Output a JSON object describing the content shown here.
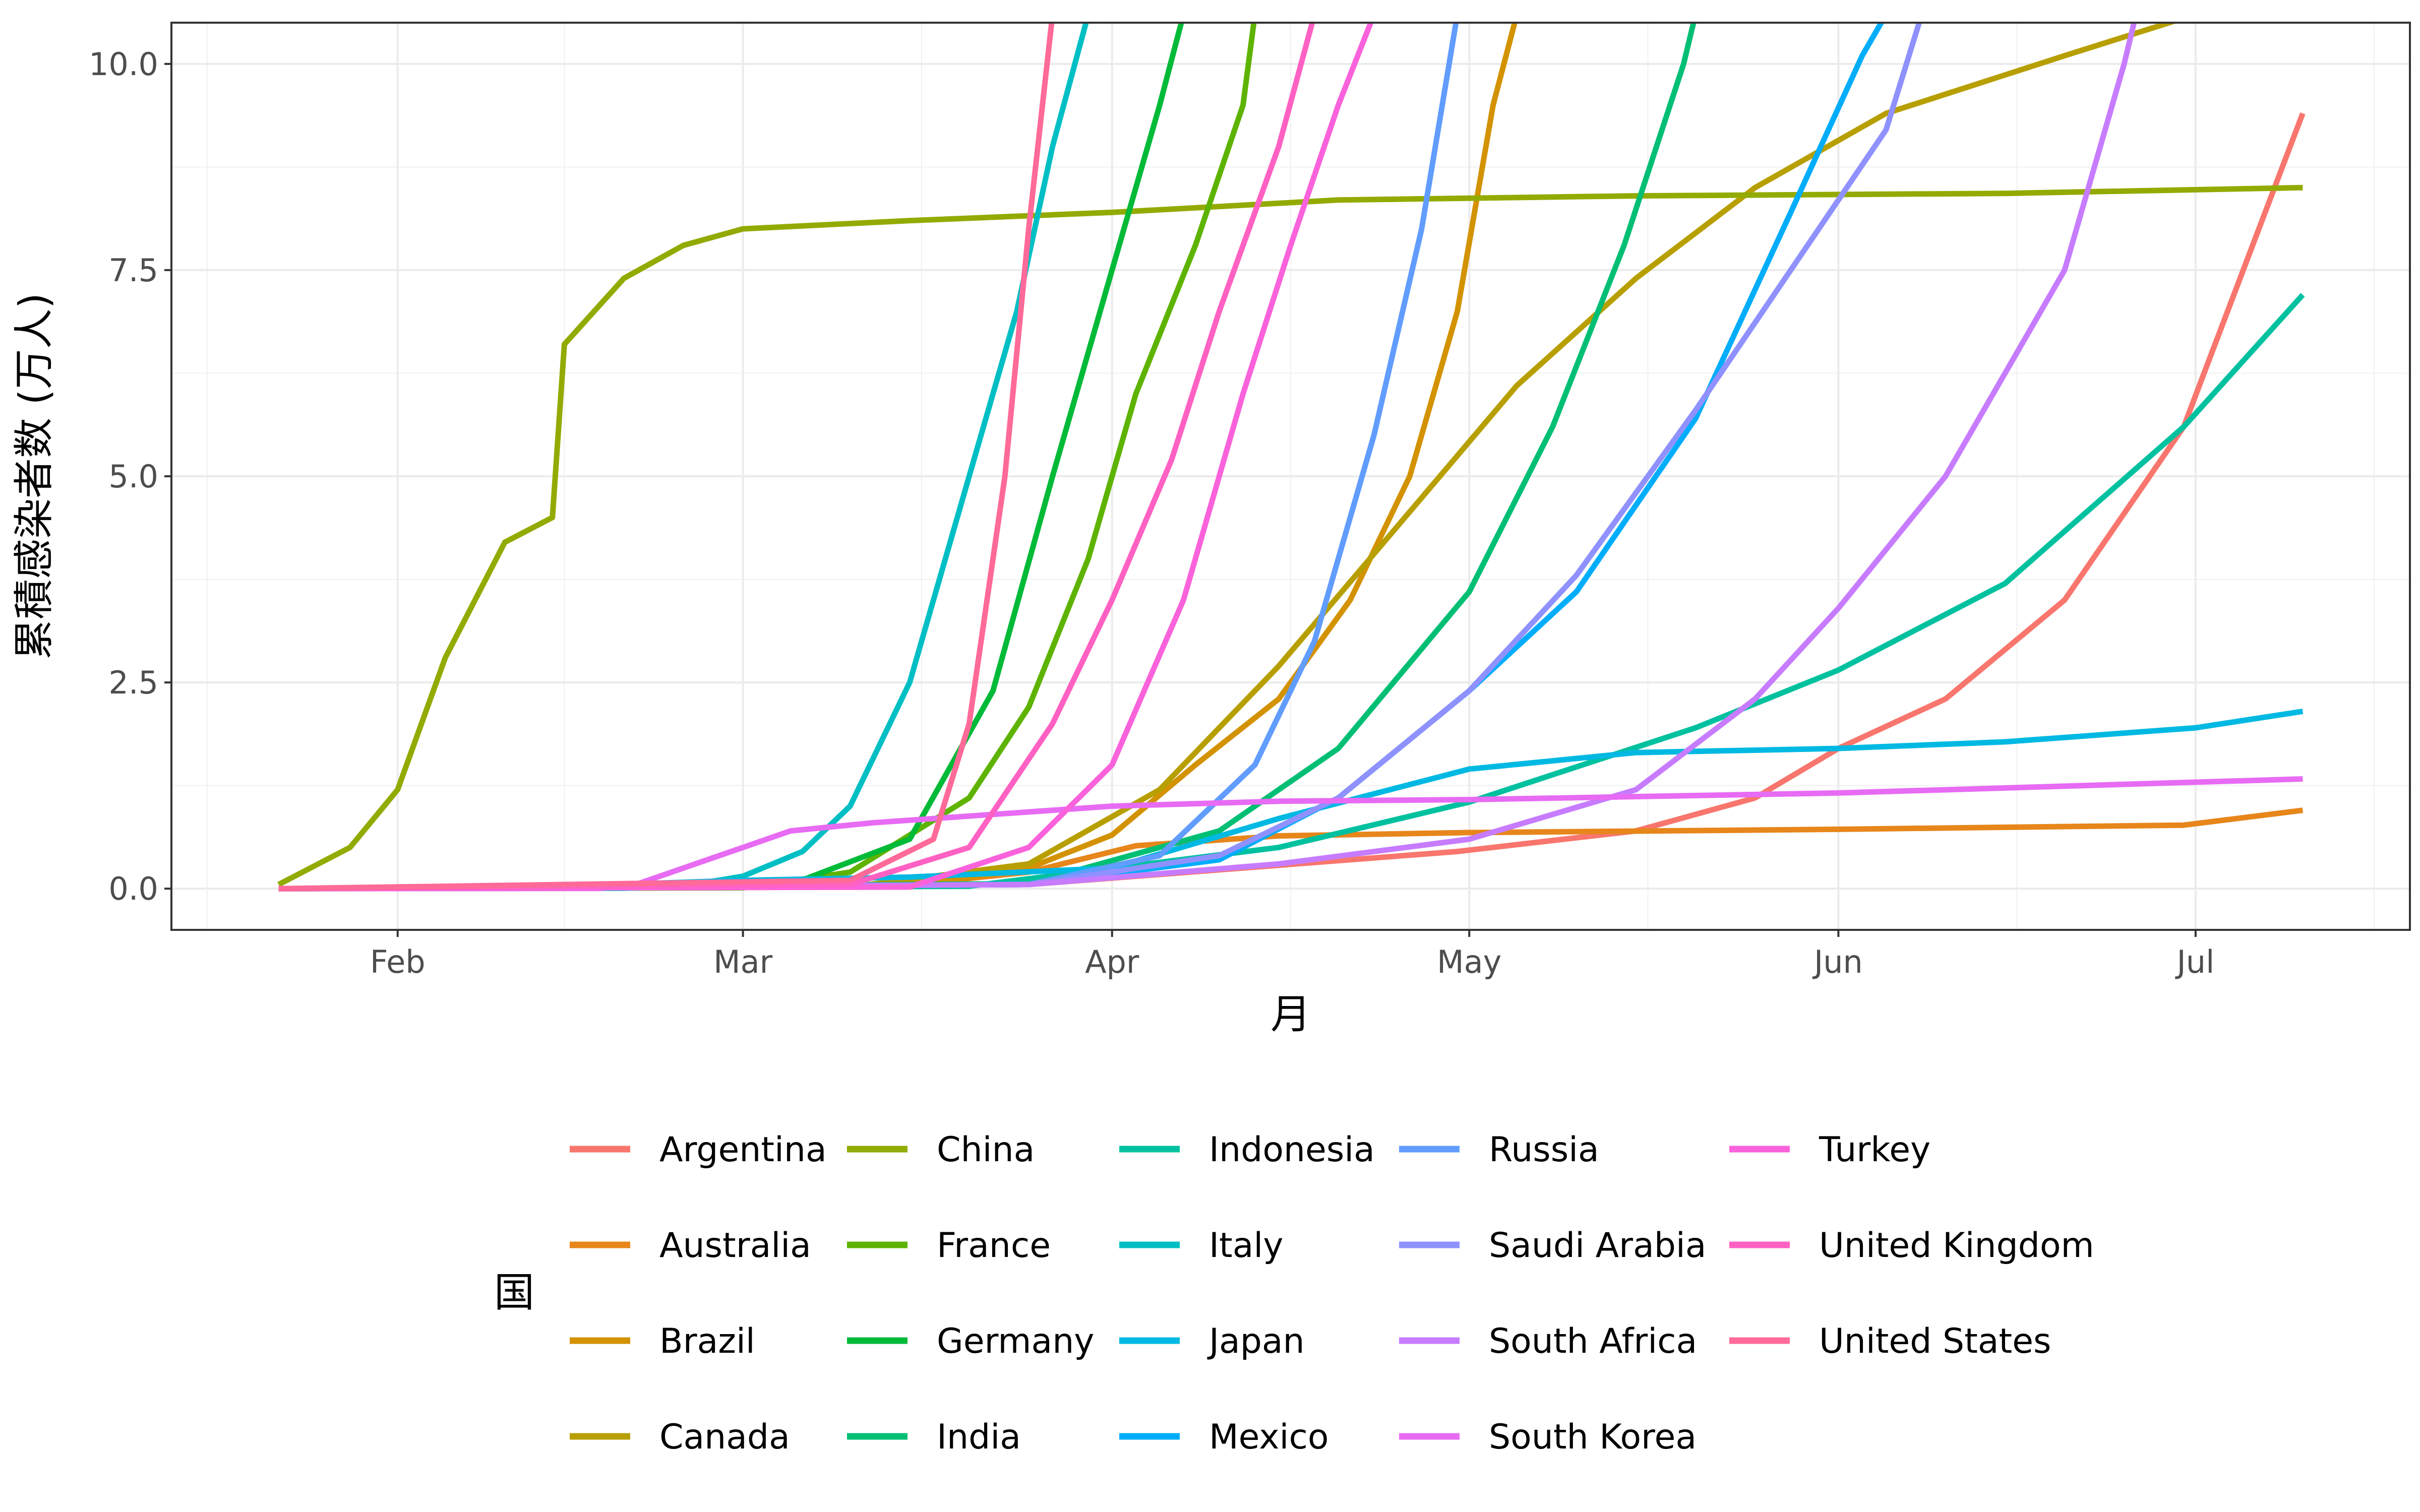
{
  "chart_data": {
    "type": "line",
    "xlabel": "月",
    "ylabel": "累積感染者数 (万人)",
    "legend_title": "国",
    "legend_position": "bottom",
    "grid": true,
    "x_axis": "date",
    "xlim": [
      "2020-01-13",
      "2020-07-19"
    ],
    "ylim": [
      -0.5,
      10.5
    ],
    "x_ticks": [
      {
        "date": "2020-02-01",
        "label": "Feb"
      },
      {
        "date": "2020-03-01",
        "label": "Mar"
      },
      {
        "date": "2020-04-01",
        "label": "Apr"
      },
      {
        "date": "2020-05-01",
        "label": "May"
      },
      {
        "date": "2020-06-01",
        "label": "Jun"
      },
      {
        "date": "2020-07-01",
        "label": "Jul"
      }
    ],
    "x_minor_ticks": [
      "2020-01-16",
      "2020-02-15",
      "2020-03-16",
      "2020-04-16",
      "2020-05-16",
      "2020-06-16",
      "2020-07-16"
    ],
    "y_ticks": [
      0.0,
      2.5,
      5.0,
      7.5,
      10.0
    ],
    "y_tick_labels": [
      "0.0",
      "2.5",
      "5.0",
      "7.5",
      "10.0"
    ],
    "series": [
      {
        "name": "Argentina",
        "color": "#F8766D",
        "points": [
          [
            "2020-01-22",
            0
          ],
          [
            "2020-03-25",
            0.05
          ],
          [
            "2020-04-30",
            0.45
          ],
          [
            "2020-05-15",
            0.7
          ],
          [
            "2020-05-25",
            1.1
          ],
          [
            "2020-06-01",
            1.7
          ],
          [
            "2020-06-10",
            2.3
          ],
          [
            "2020-06-20",
            3.5
          ],
          [
            "2020-06-30",
            5.6
          ],
          [
            "2020-07-10",
            9.4
          ]
        ]
      },
      {
        "name": "Australia",
        "color": "#E7861B",
        "points": [
          [
            "2020-01-22",
            0
          ],
          [
            "2020-03-15",
            0.05
          ],
          [
            "2020-03-25",
            0.2
          ],
          [
            "2020-04-03",
            0.52
          ],
          [
            "2020-04-15",
            0.64
          ],
          [
            "2020-05-01",
            0.68
          ],
          [
            "2020-06-01",
            0.72
          ],
          [
            "2020-06-30",
            0.77
          ],
          [
            "2020-07-10",
            0.95
          ]
        ]
      },
      {
        "name": "Brazil",
        "color": "#D39200",
        "points": [
          [
            "2020-01-22",
            0
          ],
          [
            "2020-03-15",
            0.02
          ],
          [
            "2020-03-25",
            0.25
          ],
          [
            "2020-04-01",
            0.65
          ],
          [
            "2020-04-08",
            1.5
          ],
          [
            "2020-04-15",
            2.3
          ],
          [
            "2020-04-21",
            3.5
          ],
          [
            "2020-04-26",
            5.0
          ],
          [
            "2020-04-30",
            7.0
          ],
          [
            "2020-05-03",
            9.5
          ],
          [
            "2020-05-05",
            10.6
          ]
        ]
      },
      {
        "name": "Canada",
        "color": "#B79F00",
        "points": [
          [
            "2020-01-22",
            0
          ],
          [
            "2020-03-10",
            0.02
          ],
          [
            "2020-03-25",
            0.3
          ],
          [
            "2020-04-05",
            1.2
          ],
          [
            "2020-04-15",
            2.7
          ],
          [
            "2020-04-25",
            4.4
          ],
          [
            "2020-05-05",
            6.1
          ],
          [
            "2020-05-15",
            7.4
          ],
          [
            "2020-05-25",
            8.5
          ],
          [
            "2020-06-05",
            9.4
          ],
          [
            "2020-06-20",
            10.1
          ],
          [
            "2020-07-01",
            10.6
          ]
        ]
      },
      {
        "name": "China",
        "color": "#93AA00",
        "points": [
          [
            "2020-01-22",
            0.05
          ],
          [
            "2020-01-28",
            0.5
          ],
          [
            "2020-02-01",
            1.2
          ],
          [
            "2020-02-05",
            2.8
          ],
          [
            "2020-02-10",
            4.2
          ],
          [
            "2020-02-14",
            4.5
          ],
          [
            "2020-02-15",
            6.6
          ],
          [
            "2020-02-20",
            7.4
          ],
          [
            "2020-02-25",
            7.8
          ],
          [
            "2020-03-01",
            8.0
          ],
          [
            "2020-03-15",
            8.1
          ],
          [
            "2020-04-01",
            8.2
          ],
          [
            "2020-04-20",
            8.35
          ],
          [
            "2020-05-15",
            8.4
          ],
          [
            "2020-06-15",
            8.43
          ],
          [
            "2020-07-10",
            8.5
          ]
        ]
      },
      {
        "name": "France",
        "color": "#5EB300",
        "points": [
          [
            "2020-01-22",
            0
          ],
          [
            "2020-03-01",
            0.01
          ],
          [
            "2020-03-10",
            0.2
          ],
          [
            "2020-03-20",
            1.1
          ],
          [
            "2020-03-25",
            2.2
          ],
          [
            "2020-03-30",
            4.0
          ],
          [
            "2020-04-03",
            6.0
          ],
          [
            "2020-04-08",
            7.8
          ],
          [
            "2020-04-12",
            9.5
          ],
          [
            "2020-04-13",
            10.6
          ]
        ]
      },
      {
        "name": "Germany",
        "color": "#00BA38",
        "points": [
          [
            "2020-01-22",
            0
          ],
          [
            "2020-03-05",
            0.05
          ],
          [
            "2020-03-15",
            0.6
          ],
          [
            "2020-03-22",
            2.4
          ],
          [
            "2020-03-27",
            5.0
          ],
          [
            "2020-04-01",
            7.5
          ],
          [
            "2020-04-05",
            9.5
          ],
          [
            "2020-04-07",
            10.6
          ]
        ]
      },
      {
        "name": "India",
        "color": "#00BF74",
        "points": [
          [
            "2020-01-22",
            0
          ],
          [
            "2020-03-25",
            0.06
          ],
          [
            "2020-04-10",
            0.7
          ],
          [
            "2020-04-20",
            1.7
          ],
          [
            "2020-05-01",
            3.6
          ],
          [
            "2020-05-08",
            5.6
          ],
          [
            "2020-05-14",
            7.8
          ],
          [
            "2020-05-19",
            10.0
          ],
          [
            "2020-05-20",
            10.6
          ]
        ]
      },
      {
        "name": "Indonesia",
        "color": "#00C19F",
        "points": [
          [
            "2020-01-22",
            0
          ],
          [
            "2020-03-20",
            0.03
          ],
          [
            "2020-04-15",
            0.5
          ],
          [
            "2020-05-01",
            1.05
          ],
          [
            "2020-05-20",
            1.95
          ],
          [
            "2020-06-01",
            2.65
          ],
          [
            "2020-06-15",
            3.7
          ],
          [
            "2020-06-30",
            5.6
          ],
          [
            "2020-07-10",
            7.2
          ]
        ]
      },
      {
        "name": "Italy",
        "color": "#00BFC4",
        "points": [
          [
            "2020-01-22",
            0
          ],
          [
            "2020-02-20",
            0.005
          ],
          [
            "2020-02-25",
            0.03
          ],
          [
            "2020-03-01",
            0.15
          ],
          [
            "2020-03-06",
            0.45
          ],
          [
            "2020-03-10",
            1.0
          ],
          [
            "2020-03-15",
            2.5
          ],
          [
            "2020-03-20",
            5.0
          ],
          [
            "2020-03-24",
            7.0
          ],
          [
            "2020-03-27",
            9.0
          ],
          [
            "2020-03-30",
            10.6
          ]
        ]
      },
      {
        "name": "Japan",
        "color": "#00B9E3",
        "points": [
          [
            "2020-01-22",
            0
          ],
          [
            "2020-02-01",
            0.003
          ],
          [
            "2020-02-15",
            0.03
          ],
          [
            "2020-03-01",
            0.1
          ],
          [
            "2020-03-15",
            0.14
          ],
          [
            "2020-04-01",
            0.25
          ],
          [
            "2020-04-15",
            0.85
          ],
          [
            "2020-05-01",
            1.45
          ],
          [
            "2020-05-15",
            1.65
          ],
          [
            "2020-06-01",
            1.7
          ],
          [
            "2020-06-15",
            1.78
          ],
          [
            "2020-07-01",
            1.95
          ],
          [
            "2020-07-10",
            2.15
          ]
        ]
      },
      {
        "name": "Mexico",
        "color": "#00ADFA",
        "points": [
          [
            "2020-01-22",
            0
          ],
          [
            "2020-03-25",
            0.05
          ],
          [
            "2020-04-10",
            0.35
          ],
          [
            "2020-04-20",
            1.1
          ],
          [
            "2020-05-01",
            2.4
          ],
          [
            "2020-05-10",
            3.6
          ],
          [
            "2020-05-20",
            5.7
          ],
          [
            "2020-05-28",
            8.2
          ],
          [
            "2020-06-03",
            10.1
          ],
          [
            "2020-06-05",
            10.6
          ]
        ]
      },
      {
        "name": "Russia",
        "color": "#619CFF",
        "points": [
          [
            "2020-01-22",
            0
          ],
          [
            "2020-03-25",
            0.05
          ],
          [
            "2020-04-05",
            0.4
          ],
          [
            "2020-04-13",
            1.5
          ],
          [
            "2020-04-18",
            3.0
          ],
          [
            "2020-04-23",
            5.5
          ],
          [
            "2020-04-27",
            8.0
          ],
          [
            "2020-04-30",
            10.6
          ]
        ]
      },
      {
        "name": "Saudi Arabia",
        "color": "#8F91FF",
        "points": [
          [
            "2020-01-22",
            0
          ],
          [
            "2020-03-25",
            0.05
          ],
          [
            "2020-04-10",
            0.4
          ],
          [
            "2020-04-20",
            1.1
          ],
          [
            "2020-05-01",
            2.4
          ],
          [
            "2020-05-10",
            3.8
          ],
          [
            "2020-05-20",
            5.8
          ],
          [
            "2020-05-28",
            7.5
          ],
          [
            "2020-06-05",
            9.2
          ],
          [
            "2020-06-08",
            10.6
          ]
        ]
      },
      {
        "name": "South Africa",
        "color": "#C77CFF",
        "points": [
          [
            "2020-01-22",
            0
          ],
          [
            "2020-03-25",
            0.05
          ],
          [
            "2020-04-15",
            0.3
          ],
          [
            "2020-05-01",
            0.6
          ],
          [
            "2020-05-15",
            1.2
          ],
          [
            "2020-05-25",
            2.3
          ],
          [
            "2020-06-01",
            3.4
          ],
          [
            "2020-06-10",
            5.0
          ],
          [
            "2020-06-20",
            7.5
          ],
          [
            "2020-06-25",
            10.0
          ],
          [
            "2020-06-26",
            10.6
          ]
        ]
      },
      {
        "name": "South Korea",
        "color": "#E76BF3",
        "points": [
          [
            "2020-01-22",
            0
          ],
          [
            "2020-02-18",
            0.003
          ],
          [
            "2020-02-21",
            0.05
          ],
          [
            "2020-02-25",
            0.25
          ],
          [
            "2020-03-01",
            0.5
          ],
          [
            "2020-03-05",
            0.7
          ],
          [
            "2020-03-12",
            0.8
          ],
          [
            "2020-03-20",
            0.88
          ],
          [
            "2020-04-01",
            1.0
          ],
          [
            "2020-04-15",
            1.06
          ],
          [
            "2020-05-01",
            1.08
          ],
          [
            "2020-06-01",
            1.16
          ],
          [
            "2020-07-10",
            1.33
          ]
        ]
      },
      {
        "name": "Turkey",
        "color": "#FA62DB",
        "points": [
          [
            "2020-01-22",
            0
          ],
          [
            "2020-03-15",
            0.02
          ],
          [
            "2020-03-25",
            0.5
          ],
          [
            "2020-04-01",
            1.5
          ],
          [
            "2020-04-07",
            3.5
          ],
          [
            "2020-04-12",
            6.0
          ],
          [
            "2020-04-16",
            7.8
          ],
          [
            "2020-04-20",
            9.5
          ],
          [
            "2020-04-23",
            10.6
          ]
        ]
      },
      {
        "name": "United Kingdom",
        "color": "#FF61C3",
        "points": [
          [
            "2020-01-22",
            0
          ],
          [
            "2020-03-10",
            0.05
          ],
          [
            "2020-03-20",
            0.5
          ],
          [
            "2020-03-27",
            2.0
          ],
          [
            "2020-04-01",
            3.5
          ],
          [
            "2020-04-06",
            5.2
          ],
          [
            "2020-04-10",
            7.0
          ],
          [
            "2020-04-15",
            9.0
          ],
          [
            "2020-04-18",
            10.6
          ]
        ]
      },
      {
        "name": "United States",
        "color": "#FF6A98",
        "points": [
          [
            "2020-01-22",
            0
          ],
          [
            "2020-03-10",
            0.1
          ],
          [
            "2020-03-17",
            0.6
          ],
          [
            "2020-03-20",
            2.0
          ],
          [
            "2020-03-23",
            5.0
          ],
          [
            "2020-03-25",
            8.0
          ],
          [
            "2020-03-27",
            10.6
          ]
        ]
      }
    ]
  }
}
